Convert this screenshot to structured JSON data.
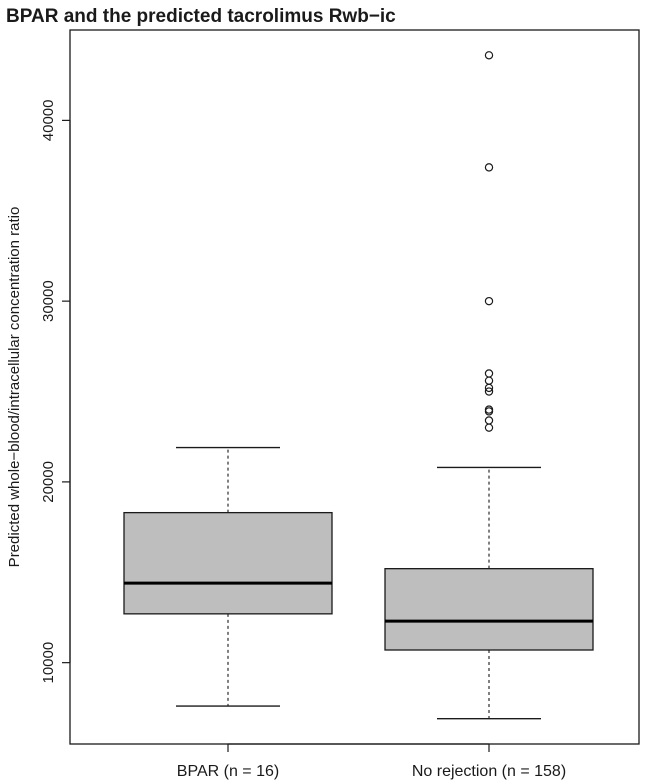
{
  "chart_data": {
    "type": "boxplot",
    "title": "BPAR and the predicted tacrolimus Rwb−ic",
    "xlabel": "",
    "ylabel": "Predicted whole−blood/intracellular concentration ratio",
    "ylim": [
      5500,
      45000
    ],
    "yticks": [
      10000,
      20000,
      30000,
      40000
    ],
    "ytick_labels": [
      "10000",
      "20000",
      "30000",
      "40000"
    ],
    "categories": [
      "BPAR (n = 16)",
      "No rejection (n = 158)"
    ],
    "boxes": [
      {
        "category": "BPAR (n = 16)",
        "whisker_low": 7600,
        "q1": 12700,
        "median": 14400,
        "q3": 18300,
        "whisker_high": 21900,
        "outliers": []
      },
      {
        "category": "No rejection (n = 158)",
        "whisker_low": 6900,
        "q1": 10700,
        "median": 12300,
        "q3": 15200,
        "whisker_high": 20800,
        "outliers": [
          23000,
          23400,
          23900,
          24000,
          25000,
          25200,
          25600,
          26000,
          30000,
          37400,
          43600
        ]
      }
    ],
    "box_color": "#bebebe",
    "grid": false,
    "legend": "none"
  }
}
